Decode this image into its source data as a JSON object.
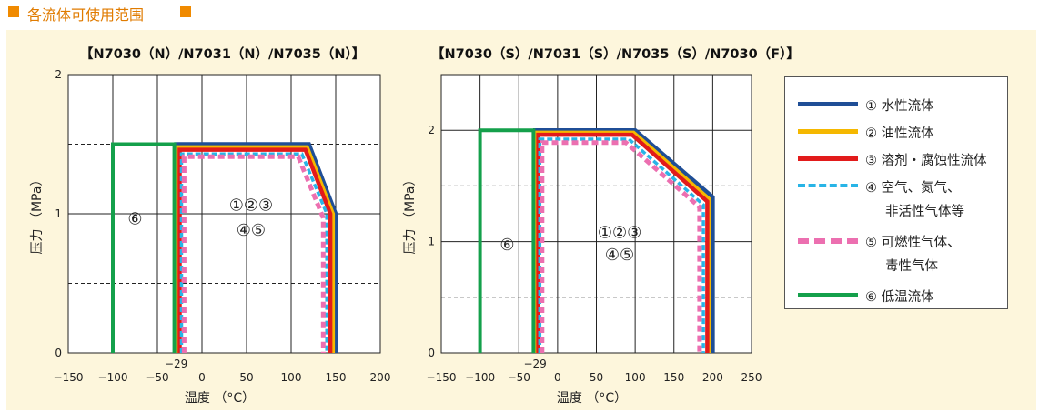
{
  "header": {
    "title": "各流体可使用范围"
  },
  "colors": {
    "header_accent": "#f08a00",
    "panel_bg": "#fdf6dc",
    "water": "#1f4e96",
    "oil": "#f5b800",
    "solvent": "#e21b1b",
    "air": "#28b4e6",
    "flammable": "#ec6fb0",
    "cryogenic": "#14a04b"
  },
  "chart_data": [
    {
      "type": "line",
      "title": "【N7030（N）/N7031（N）/N7035（N）】",
      "xlabel": "温度 （°C）",
      "ylabel": "压力  （MPa）",
      "xlim": [
        -150,
        200
      ],
      "ylim": [
        0,
        2
      ],
      "xticks": [
        -150,
        -100,
        -50,
        0,
        50,
        100,
        150,
        200
      ],
      "yticks": [
        0,
        1,
        2
      ],
      "grid": true,
      "dashed_gridlines_y": [
        0.5,
        1.5
      ],
      "extra_tick_label": "−29",
      "region_labels": [
        "⑥",
        "①②③",
        "④⑤"
      ],
      "series": [
        {
          "name": "① 水性流体",
          "x": [
            -29,
            -29,
            120,
            150,
            150
          ],
          "y": [
            0,
            1.5,
            1.5,
            1.0,
            0
          ]
        },
        {
          "name": "② 油性流体",
          "x": [
            -27,
            -27,
            118,
            147,
            147
          ],
          "y": [
            0,
            1.48,
            1.48,
            1.0,
            0
          ]
        },
        {
          "name": "③ 溶剂・腐蚀性流体",
          "x": [
            -25,
            -25,
            116,
            144,
            144
          ],
          "y": [
            0,
            1.46,
            1.46,
            1.0,
            0
          ]
        },
        {
          "name": "④ 空气、氮气、非活性气体等",
          "x": [
            -23,
            -23,
            112,
            140,
            140
          ],
          "y": [
            0,
            1.43,
            1.43,
            1.0,
            0
          ]
        },
        {
          "name": "⑤ 可燃性气体、毒性气体",
          "x": [
            -20,
            -20,
            108,
            136,
            136
          ],
          "y": [
            0,
            1.41,
            1.41,
            0.97,
            0
          ]
        },
        {
          "name": "⑥ 低温流体",
          "x": [
            -100,
            -100,
            -31,
            -31
          ],
          "y": [
            0,
            1.5,
            1.5,
            0
          ]
        }
      ]
    },
    {
      "type": "line",
      "title": "【N7030（S）/N7031（S）/N7035（S）/N7030（F）】",
      "xlabel": "温度 （°C）",
      "ylabel": "压力  （MPa）",
      "xlim": [
        -150,
        250
      ],
      "ylim": [
        0,
        2.5
      ],
      "xticks": [
        -150,
        -100,
        -50,
        0,
        50,
        100,
        150,
        200,
        250
      ],
      "yticks": [
        0,
        1,
        2
      ],
      "grid": true,
      "dashed_gridlines_y": [
        0.5,
        1.5
      ],
      "extra_tick_label": "−29",
      "region_labels": [
        "⑥",
        "①②③",
        "④⑤"
      ],
      "series": [
        {
          "name": "① 水性流体",
          "x": [
            -29,
            -29,
            100,
            200,
            200
          ],
          "y": [
            0,
            2.0,
            2.0,
            1.4,
            0
          ]
        },
        {
          "name": "② 油性流体",
          "x": [
            -27,
            -27,
            98,
            196,
            196
          ],
          "y": [
            0,
            1.98,
            1.98,
            1.38,
            0
          ]
        },
        {
          "name": "③ 溶剂・腐蚀性流体",
          "x": [
            -25,
            -25,
            96,
            193,
            193
          ],
          "y": [
            0,
            1.96,
            1.96,
            1.36,
            0
          ]
        },
        {
          "name": "④ 空气、氮气、非活性气体等",
          "x": [
            -23,
            -23,
            92,
            188,
            188
          ],
          "y": [
            0,
            1.92,
            1.92,
            1.33,
            0
          ]
        },
        {
          "name": "⑤ 可燃性气体、毒性气体",
          "x": [
            -20,
            -20,
            88,
            183,
            183
          ],
          "y": [
            0,
            1.89,
            1.89,
            1.31,
            0
          ]
        },
        {
          "name": "⑥ 低温流体",
          "x": [
            -100,
            -100,
            -31,
            -31
          ],
          "y": [
            0,
            2.0,
            2.0,
            0
          ]
        }
      ]
    }
  ],
  "legend": {
    "items": [
      {
        "line1": "① 水性流体",
        "line2": ""
      },
      {
        "line1": "② 油性流体",
        "line2": ""
      },
      {
        "line1": "③ 溶剂・腐蚀性流体",
        "line2": ""
      },
      {
        "line1": "④ 空气、氮气、",
        "line2": "非活性气体等"
      },
      {
        "line1": "⑤ 可燃性气体、",
        "line2": "毒性气体"
      },
      {
        "line1": "⑥ 低温流体",
        "line2": ""
      }
    ]
  }
}
